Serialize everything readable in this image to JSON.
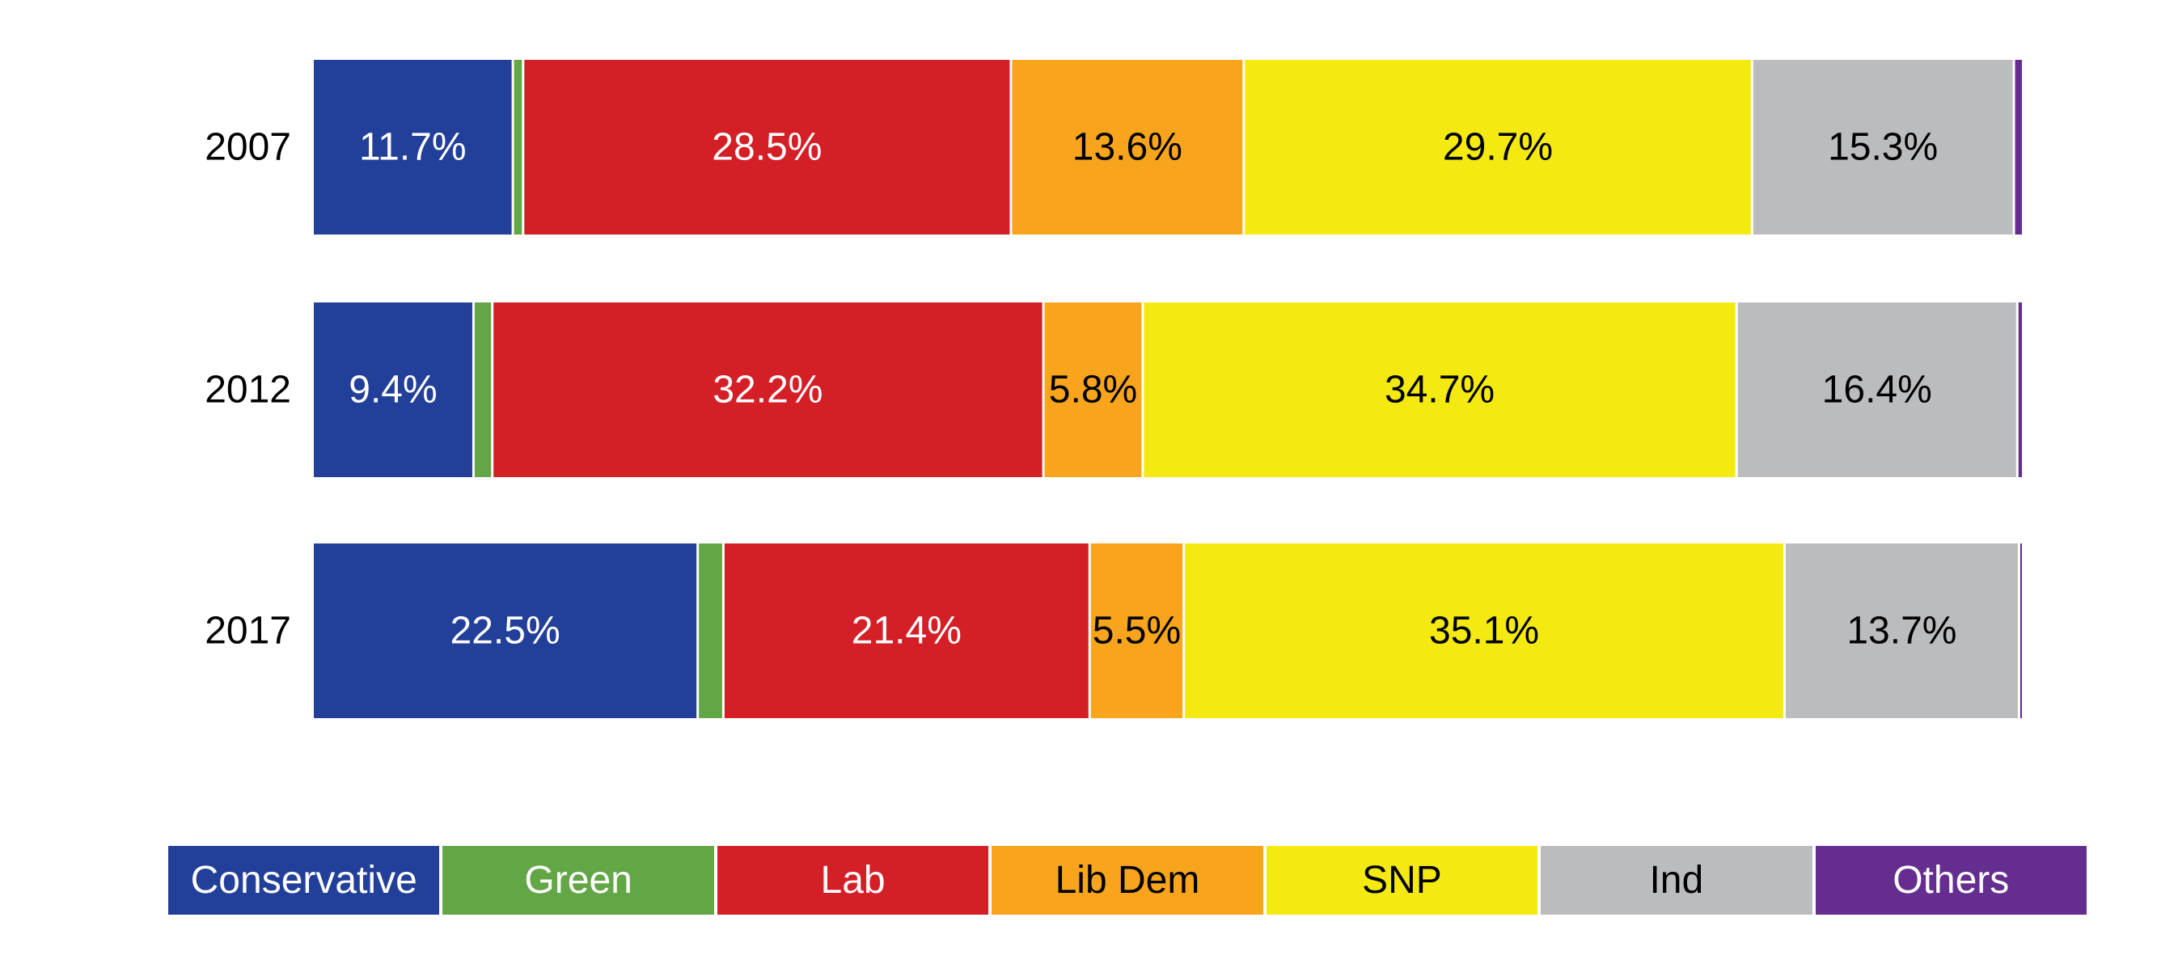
{
  "chart_data": {
    "type": "bar",
    "orientation": "horizontal",
    "stacked": true,
    "percent_stacked": true,
    "categories": [
      "2007",
      "2012",
      "2017"
    ],
    "series": [
      {
        "name": "Conservative",
        "color": "#223f99",
        "label_color": "#ffffff",
        "values": [
          11.7,
          9.4,
          22.5
        ],
        "labels": [
          "11.7%",
          "9.4%",
          "22.5%"
        ]
      },
      {
        "name": "Green",
        "color": "#62a646",
        "label_color": "#ffffff",
        "values": [
          0.6,
          1.1,
          1.5
        ],
        "labels": [
          "",
          "",
          ""
        ]
      },
      {
        "name": "Lab",
        "color": "#d41f27",
        "label_color": "#ffffff",
        "values": [
          28.5,
          32.2,
          21.4
        ],
        "labels": [
          "28.5%",
          "32.2%",
          "21.4%"
        ]
      },
      {
        "name": "Lib Dem",
        "color": "#f8a51d",
        "label_color": "#000000",
        "values": [
          13.6,
          5.8,
          5.5
        ],
        "labels": [
          "13.6%",
          "5.8%",
          "5.5%"
        ]
      },
      {
        "name": "SNP",
        "color": "#f5e912",
        "label_color": "#000000",
        "values": [
          29.7,
          34.7,
          35.1
        ],
        "labels": [
          "29.7%",
          "34.7%",
          "35.1%"
        ]
      },
      {
        "name": "Ind",
        "color": "#bbbcbe",
        "label_color": "#000000",
        "values": [
          15.3,
          16.4,
          13.7
        ],
        "labels": [
          "15.3%",
          "16.4%",
          "13.7%"
        ]
      },
      {
        "name": "Others",
        "color": "#662d91",
        "label_color": "#ffffff",
        "values": [
          0.4,
          0.2,
          0.1
        ],
        "labels": [
          "",
          "",
          ""
        ]
      }
    ],
    "xlim": [
      0,
      100
    ],
    "title": "",
    "xlabel": "",
    "ylabel": "",
    "grid": false,
    "legend_position": "bottom"
  }
}
